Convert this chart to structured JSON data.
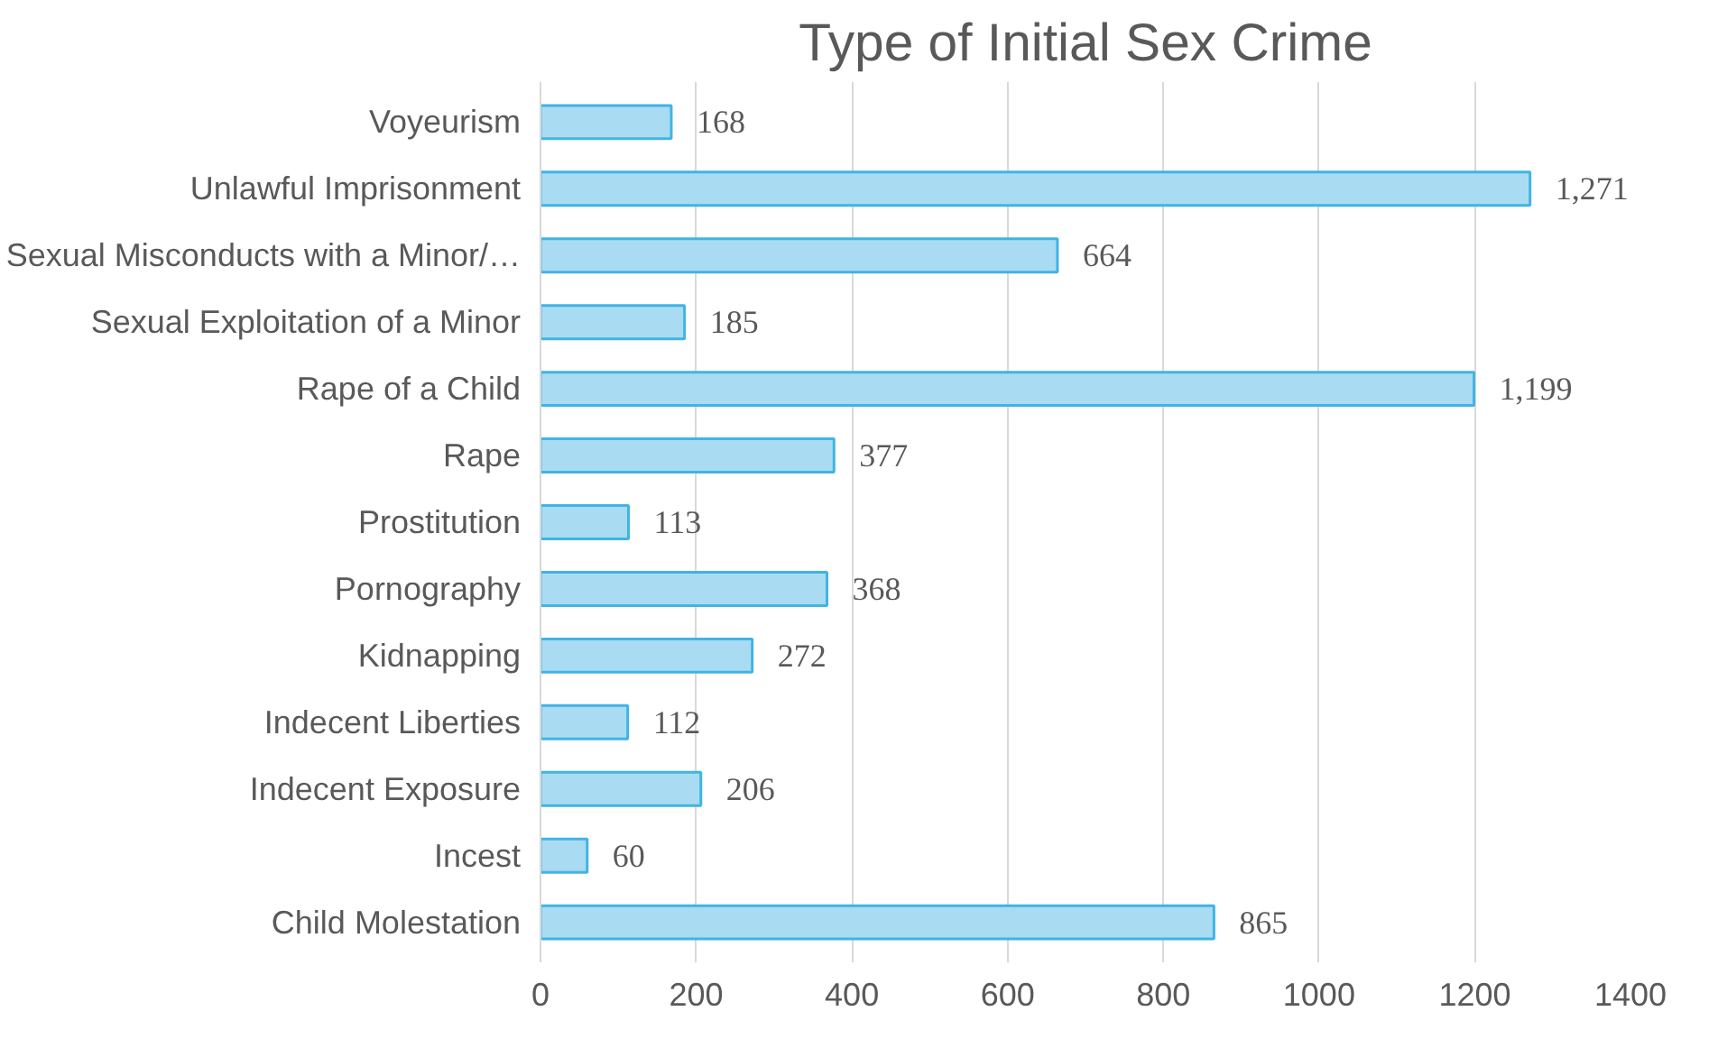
{
  "chart_data": {
    "type": "bar",
    "orientation": "horizontal",
    "title": "Type of Initial Sex Crime",
    "categories": [
      "Voyeurism",
      "Unlawful Imprisonment",
      "Sexual Misconducts with a Minor/…",
      "Sexual Exploitation of a Minor",
      "Rape of a Child",
      "Rape",
      "Prostitution",
      "Pornography",
      "Kidnapping",
      "Indecent Liberties",
      "Indecent Exposure",
      "Incest",
      "Child Molestation"
    ],
    "values": [
      168,
      1271,
      664,
      185,
      1199,
      377,
      113,
      368,
      272,
      112,
      206,
      60,
      865
    ],
    "value_labels": [
      "168",
      "1,271",
      "664",
      "185",
      "1,199",
      "377",
      "113",
      "368",
      "272",
      "112",
      "206",
      "60",
      "865"
    ],
    "color": "#a9dbf3",
    "xlim": [
      0,
      1400
    ],
    "xticks": [
      0,
      200,
      400,
      600,
      800,
      1000,
      1200,
      1400
    ],
    "grid": "x"
  }
}
